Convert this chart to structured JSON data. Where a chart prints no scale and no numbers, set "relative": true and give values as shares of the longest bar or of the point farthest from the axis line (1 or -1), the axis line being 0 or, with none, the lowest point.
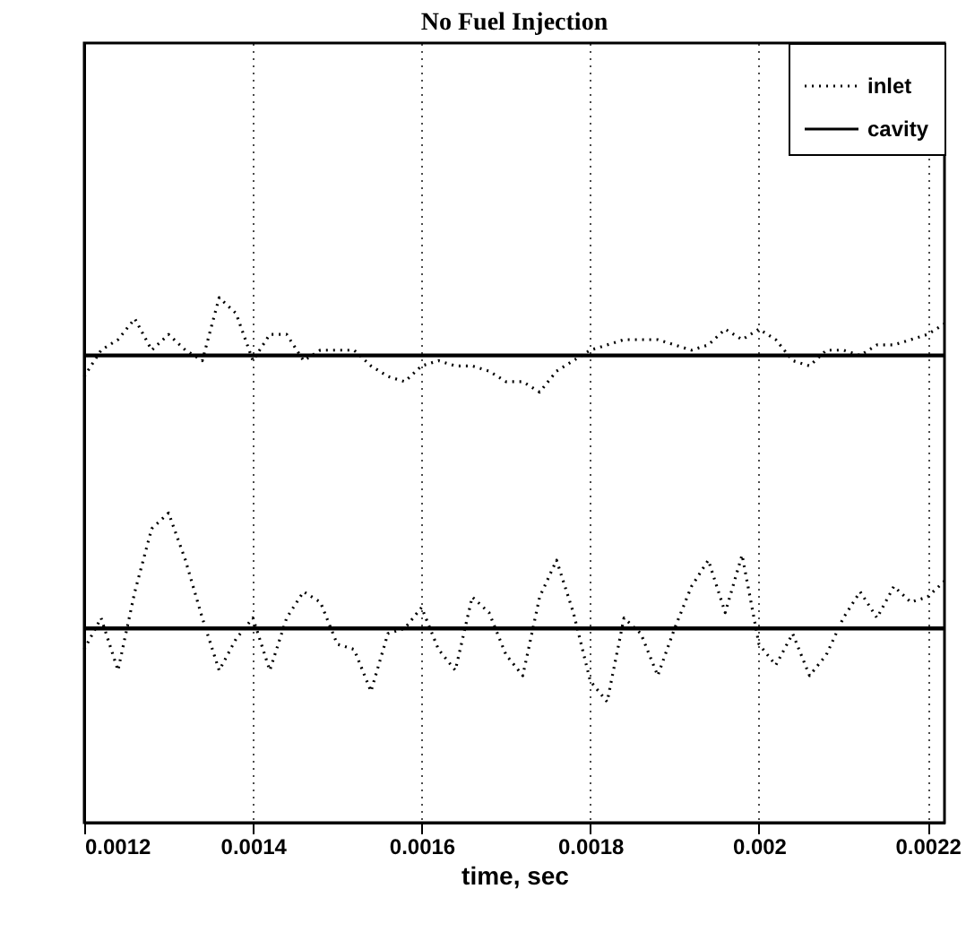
{
  "chart_data": {
    "type": "line",
    "title": "No Fuel Injection",
    "xlabel": "time, sec",
    "relative": true,
    "x": [
      0.0012,
      0.00122,
      0.00124,
      0.00126,
      0.00128,
      0.0013,
      0.00132,
      0.00134,
      0.00136,
      0.00138,
      0.0014,
      0.00142,
      0.00144,
      0.00146,
      0.00148,
      0.0015,
      0.00152,
      0.00154,
      0.00156,
      0.00158,
      0.0016,
      0.00162,
      0.00164,
      0.00166,
      0.00168,
      0.0017,
      0.00172,
      0.00174,
      0.00176,
      0.00178,
      0.0018,
      0.00182,
      0.00184,
      0.00186,
      0.00188,
      0.0019,
      0.00192,
      0.00194,
      0.00196,
      0.00198,
      0.002,
      0.00202,
      0.00204,
      0.00206,
      0.00208,
      0.0021,
      0.00212,
      0.00214,
      0.00216,
      0.00218,
      0.0022,
      0.00222
    ],
    "series": [
      {
        "name": "inlet",
        "color": "#000000",
        "line_style": "dotted",
        "values": [
          0.85,
          0.9,
          0.92,
          0.96,
          0.9,
          0.93,
          0.9,
          0.88,
          1.0,
          0.97,
          0.88,
          0.93,
          0.93,
          0.88,
          0.9,
          0.9,
          0.9,
          0.87,
          0.85,
          0.84,
          0.87,
          0.88,
          0.87,
          0.87,
          0.86,
          0.84,
          0.84,
          0.82,
          0.86,
          0.88,
          0.9,
          0.91,
          0.92,
          0.92,
          0.92,
          0.91,
          0.9,
          0.91,
          0.94,
          0.92,
          0.94,
          0.92,
          0.88,
          0.87,
          0.9,
          0.9,
          0.89,
          0.91,
          0.91,
          0.92,
          0.93,
          0.95
        ]
      },
      {
        "color": "#000000",
        "line_style": "dotted",
        "values": [
          0.33,
          0.39,
          0.29,
          0.44,
          0.56,
          0.59,
          0.5,
          0.39,
          0.29,
          0.35,
          0.39,
          0.29,
          0.39,
          0.44,
          0.42,
          0.34,
          0.33,
          0.25,
          0.36,
          0.37,
          0.41,
          0.33,
          0.29,
          0.43,
          0.4,
          0.32,
          0.28,
          0.43,
          0.5,
          0.4,
          0.27,
          0.23,
          0.39,
          0.36,
          0.28,
          0.37,
          0.45,
          0.5,
          0.4,
          0.51,
          0.34,
          0.3,
          0.36,
          0.28,
          0.32,
          0.39,
          0.44,
          0.39,
          0.45,
          0.42,
          0.43,
          0.46
        ]
      },
      {
        "name": "cavity",
        "color": "#000000",
        "line_style": "solid",
        "values": [
          0.89,
          0.89,
          0.89,
          0.89,
          0.89,
          0.89,
          0.89,
          0.89,
          0.89,
          0.89,
          0.89,
          0.89,
          0.89,
          0.89,
          0.89,
          0.89,
          0.89,
          0.89,
          0.89,
          0.89,
          0.89,
          0.89,
          0.89,
          0.89,
          0.89,
          0.89,
          0.89,
          0.89,
          0.89,
          0.89,
          0.89,
          0.89,
          0.89,
          0.89,
          0.89,
          0.89,
          0.89,
          0.89,
          0.89,
          0.89,
          0.89,
          0.89,
          0.89,
          0.89,
          0.89,
          0.89,
          0.89,
          0.89,
          0.89,
          0.89,
          0.89,
          0.89
        ]
      },
      {
        "color": "#000000",
        "line_style": "solid",
        "values": [
          0.37,
          0.37,
          0.37,
          0.37,
          0.37,
          0.37,
          0.37,
          0.37,
          0.37,
          0.37,
          0.37,
          0.37,
          0.37,
          0.37,
          0.37,
          0.37,
          0.37,
          0.37,
          0.37,
          0.37,
          0.37,
          0.37,
          0.37,
          0.37,
          0.37,
          0.37,
          0.37,
          0.37,
          0.37,
          0.37,
          0.37,
          0.37,
          0.37,
          0.37,
          0.37,
          0.37,
          0.37,
          0.37,
          0.37,
          0.37,
          0.37,
          0.37,
          0.37,
          0.37,
          0.37,
          0.37,
          0.37,
          0.37,
          0.37,
          0.37,
          0.37,
          0.37
        ]
      }
    ],
    "xlim": [
      0.0012,
      0.00222
    ],
    "xticks": [
      0.0012,
      0.0014,
      0.0016,
      0.0018,
      0.002,
      0.0022
    ],
    "grid": "x",
    "legend": "top right",
    "marker": "none"
  }
}
